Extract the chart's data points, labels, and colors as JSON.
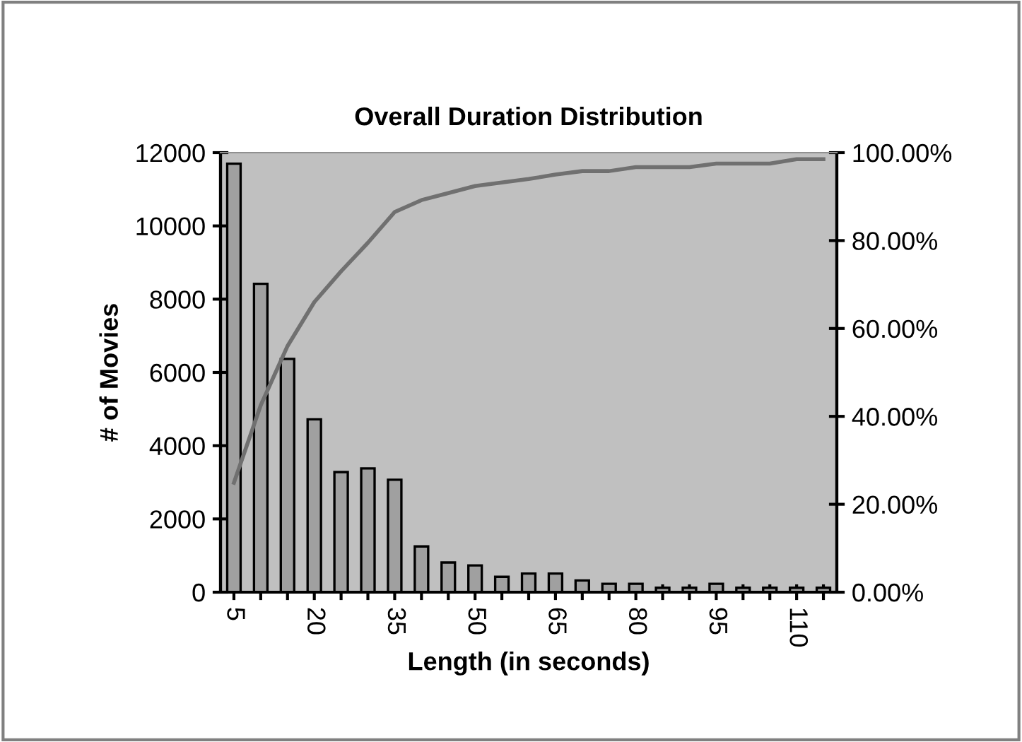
{
  "chart_data": {
    "type": "bar",
    "title": "Overall Duration Distribution",
    "xlabel": "Length (in seconds)",
    "ylabel": "# of Movies",
    "categories": [
      "5",
      null,
      null,
      "20",
      null,
      null,
      "35",
      null,
      null,
      "50",
      null,
      null,
      "65",
      null,
      null,
      "80",
      null,
      null,
      "95",
      null,
      null,
      "110",
      null
    ],
    "series": [
      {
        "color": "#a0a0a0",
        "values": [
          11700,
          8420,
          6370,
          4720,
          3280,
          3380,
          3070,
          1250,
          810,
          730,
          420,
          510,
          510,
          320,
          230,
          230,
          120,
          120,
          230,
          120,
          120,
          120,
          120
        ]
      },
      {
        "type": "line",
        "axis": "y2",
        "color": "#707070",
        "values": [
          24.9,
          42.5,
          56,
          66,
          73,
          79.5,
          86.5,
          89.2,
          90.8,
          92.4,
          93.2,
          94,
          95,
          95.8,
          95.8,
          96.7,
          96.7,
          96.7,
          97.5,
          97.5,
          97.5,
          98.5,
          98.5
        ]
      }
    ],
    "ylim": [
      0,
      12000
    ],
    "yticks": [
      0,
      2000,
      4000,
      6000,
      8000,
      10000,
      12000
    ],
    "y2lim": [
      0,
      100
    ],
    "y2ticks": [
      {
        "value": 0,
        "label": "0.00%"
      },
      {
        "value": 20,
        "label": "20.00%"
      },
      {
        "value": 40,
        "label": "40.00%"
      },
      {
        "value": 60,
        "label": "60.00%"
      },
      {
        "value": 80,
        "label": "80.00%"
      },
      {
        "value": 100,
        "label": "100.00%"
      }
    ],
    "grid": false,
    "legend": false
  }
}
